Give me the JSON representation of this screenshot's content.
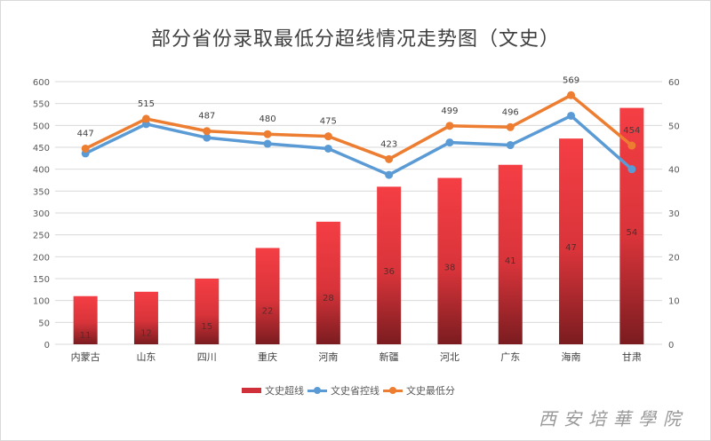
{
  "chart_data": {
    "type": "bar+line",
    "title": "部分省份录取最低分超线情况走势图（文史）",
    "categories": [
      "内蒙古",
      "山东",
      "四川",
      "重庆",
      "河南",
      "新疆",
      "河北",
      "广东",
      "海南",
      "甘肃"
    ],
    "series": [
      {
        "name": "文史超线",
        "type": "bar",
        "axis": "right",
        "color": "#e8343c",
        "values": [
          11,
          12,
          15,
          22,
          28,
          36,
          38,
          41,
          47,
          54
        ]
      },
      {
        "name": "文史省控线",
        "type": "line",
        "axis": "left",
        "color": "#5b9bd5",
        "values": [
          436,
          503,
          472,
          458,
          447,
          387,
          461,
          455,
          522,
          400
        ]
      },
      {
        "name": "文史最低分",
        "type": "line",
        "axis": "left",
        "color": "#ed7d31",
        "values": [
          447,
          515,
          487,
          480,
          475,
          423,
          499,
          496,
          569,
          454
        ]
      }
    ],
    "left_axis": {
      "range": [
        0,
        600
      ],
      "ticks": [
        0,
        50,
        100,
        150,
        200,
        250,
        300,
        350,
        400,
        450,
        500,
        550,
        600
      ]
    },
    "right_axis": {
      "range": [
        0,
        60
      ],
      "ticks": [
        0,
        10,
        20,
        30,
        40,
        50,
        60
      ]
    },
    "grid": true,
    "legend": "bottom"
  },
  "watermark": "西安培華學院"
}
